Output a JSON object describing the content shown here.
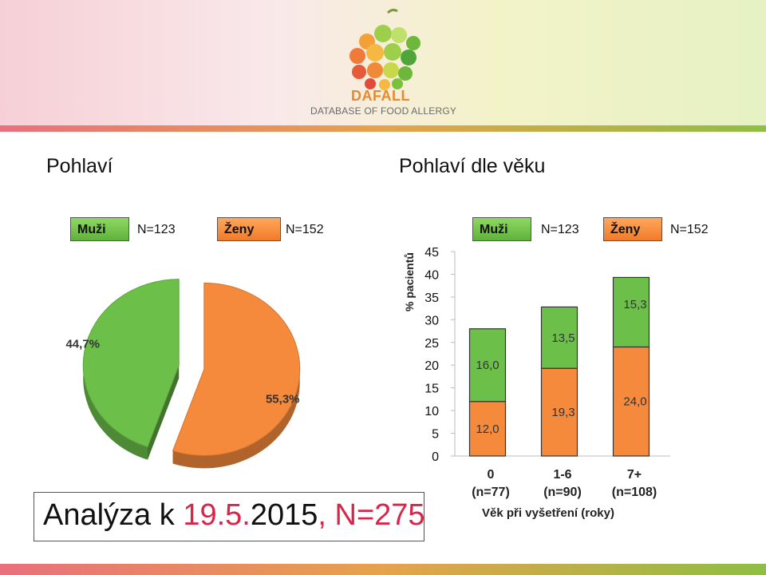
{
  "header": {
    "logo_name": "DAFALL",
    "logo_subtitle": "DATABASE OF FOOD ALLERGY"
  },
  "headings": {
    "left": "Pohlaví",
    "right": "Pohlaví dle věku"
  },
  "legend": {
    "male_label": "Muži",
    "male_n": "N=123",
    "female_label": "Ženy",
    "female_n": "N=152"
  },
  "colors": {
    "male": "#6cc04a",
    "female": "#f58a3c",
    "analysis_accent": "#d8254a"
  },
  "analysis": {
    "prefix": "Analýza k ",
    "date": "19.5.",
    "year": "2015",
    "separator": ", ",
    "n": "N=275"
  },
  "chart_data": [
    {
      "type": "pie",
      "labels": [
        "Muži",
        "Ženy"
      ],
      "values": [
        44.7,
        55.3
      ],
      "value_labels": [
        "44,7%",
        "55,3%"
      ],
      "colors": [
        "#6cc04a",
        "#f58a3c"
      ]
    },
    {
      "type": "bar",
      "stacked": true,
      "categories": [
        "0",
        "1-6",
        "7+"
      ],
      "category_n": [
        "(n=77)",
        "(n=90)",
        "(n=108)"
      ],
      "series": [
        {
          "name": "Ženy",
          "values": [
            12.0,
            19.3,
            24.0
          ],
          "labels": [
            "12,0",
            "19,3",
            "24,0"
          ],
          "color": "#f58a3c"
        },
        {
          "name": "Muži",
          "values": [
            16.0,
            13.5,
            15.3
          ],
          "labels": [
            "16,0",
            "13,5",
            "15,3"
          ],
          "color": "#6cc04a"
        }
      ],
      "xlabel": "Věk při vyšetření (roky)",
      "ylabel": "% pacientů",
      "ylim": [
        0,
        45
      ],
      "yticks": [
        "0",
        "5",
        "10",
        "15",
        "20",
        "25",
        "30",
        "35",
        "40",
        "45"
      ],
      "grid": false
    }
  ]
}
